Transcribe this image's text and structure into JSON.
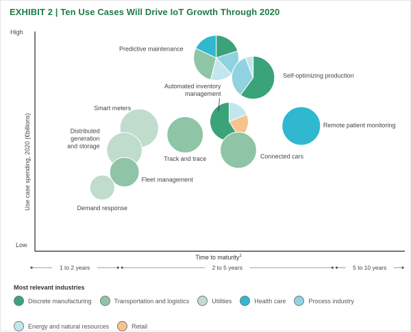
{
  "exhibit": {
    "label": "EXHIBIT 2",
    "separator": "|",
    "title": "Ten Use Cases Will Drive IoT Growth Through 2020"
  },
  "chart_data": {
    "type": "bubble",
    "title": "Ten Use Cases Will Drive IoT Growth Through 2020",
    "xlabel": "Time to maturity",
    "xlabel_footnote": "1",
    "ylabel": "Use case spending, 2020 (€billions)",
    "y_high_label": "High",
    "y_low_label": "Low",
    "xlim": [
      0,
      10
    ],
    "ylim": [
      0,
      10
    ],
    "maturity_bands": [
      {
        "label": "1 to 2 years",
        "start": 0,
        "end": 2.3
      },
      {
        "label": "2 to 5 years",
        "start": 2.3,
        "end": 8.1
      },
      {
        "label": "5 to 10 years",
        "start": 8.1,
        "end": 10
      }
    ],
    "industries": [
      {
        "name": "Discrete manufacturing",
        "color": "#3aa37a"
      },
      {
        "name": "Transportation and logistics",
        "color": "#8fc4a6"
      },
      {
        "name": "Utilities",
        "color": "#bfdccd"
      },
      {
        "name": "Health care",
        "color": "#2fb8d0"
      },
      {
        "name": "Process industry",
        "color": "#8fd2e0"
      },
      {
        "name": "Energy and natural resources",
        "color": "#c3e6ee"
      },
      {
        "name": "Retail",
        "color": "#f7c28d"
      }
    ],
    "use_cases": [
      {
        "name": "Predictive maintenance",
        "label_lines": [
          "Predictive maintenance"
        ],
        "x": 4.9,
        "y": 8.8,
        "size": 1.0,
        "segments": [
          {
            "industry": "Discrete manufacturing",
            "share": 0.2
          },
          {
            "industry": "Process industry",
            "share": 0.18
          },
          {
            "industry": "Energy and natural resources",
            "share": 0.16
          },
          {
            "industry": "Transportation and logistics",
            "share": 0.28
          },
          {
            "industry": "Health care",
            "share": 0.18
          }
        ]
      },
      {
        "name": "Self-optimizing production",
        "label_lines": [
          "Self-optimizing production"
        ],
        "x": 5.9,
        "y": 7.9,
        "size": 0.95,
        "segments": [
          {
            "industry": "Discrete manufacturing",
            "share": 0.6
          },
          {
            "industry": "Process industry",
            "share": 0.34
          },
          {
            "industry": "Energy and natural resources",
            "share": 0.06
          }
        ]
      },
      {
        "name": "Automated inventory management",
        "label_lines": [
          "Automated inventory",
          "management"
        ],
        "x": 5.25,
        "y": 5.9,
        "size": 0.85,
        "segments": [
          {
            "industry": "Energy and natural resources",
            "share": 0.19
          },
          {
            "industry": "Retail",
            "share": 0.22
          },
          {
            "industry": "Discrete manufacturing",
            "share": 0.59
          }
        ]
      },
      {
        "name": "Remote patient monitoring",
        "label_lines": [
          "Remote patient monitoring"
        ],
        "x": 7.2,
        "y": 5.7,
        "size": 0.85,
        "segments": [
          {
            "industry": "Health care",
            "share": 1.0
          }
        ]
      },
      {
        "name": "Smart meters",
        "label_lines": [
          "Smart meters"
        ],
        "x": 2.82,
        "y": 5.6,
        "size": 0.85,
        "segments": [
          {
            "industry": "Utilities",
            "share": 1.0
          }
        ]
      },
      {
        "name": "Track and trace",
        "label_lines": [
          "Track and trace"
        ],
        "x": 4.06,
        "y": 5.3,
        "size": 0.8,
        "segments": [
          {
            "industry": "Transportation and logistics",
            "share": 1.0
          }
        ]
      },
      {
        "name": "Connected cars",
        "label_lines": [
          "Connected cars"
        ],
        "x": 5.5,
        "y": 4.6,
        "size": 0.8,
        "segments": [
          {
            "industry": "Transportation and logistics",
            "share": 1.0
          }
        ]
      },
      {
        "name": "Distributed generation and storage",
        "label_lines": [
          "Distributed",
          "generation",
          "and storage"
        ],
        "x": 2.42,
        "y": 4.6,
        "size": 0.78,
        "segments": [
          {
            "industry": "Utilities",
            "share": 1.0
          }
        ]
      },
      {
        "name": "Fleet management",
        "label_lines": [
          "Fleet management"
        ],
        "x": 2.42,
        "y": 3.6,
        "size": 0.65,
        "segments": [
          {
            "industry": "Transportation and logistics",
            "share": 1.0
          }
        ]
      },
      {
        "name": "Demand response",
        "label_lines": [
          "Demand response"
        ],
        "x": 1.82,
        "y": 2.9,
        "size": 0.55,
        "segments": [
          {
            "industry": "Utilities",
            "share": 1.0
          }
        ]
      }
    ]
  },
  "legend": {
    "title": "Most relevant industries"
  }
}
